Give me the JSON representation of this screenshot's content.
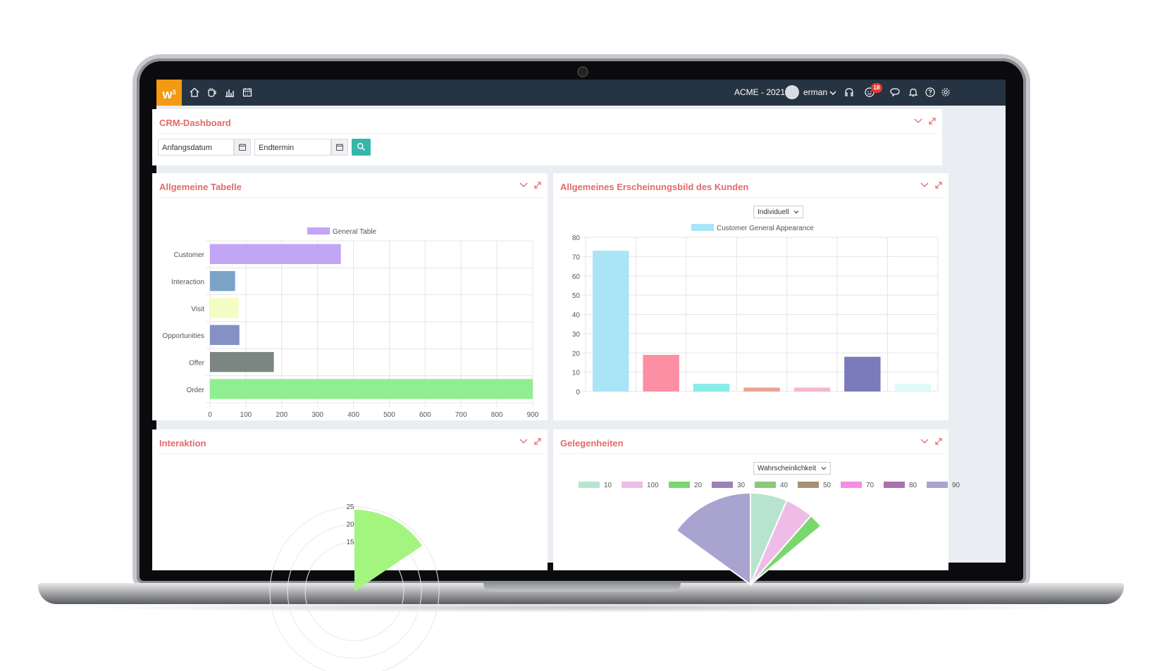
{
  "topbar": {
    "company": "ACME - 2021",
    "user": "erman",
    "notification_count": "18",
    "icons": [
      "home-icon",
      "coffee-icon",
      "bar-chart-icon",
      "calendar-icon",
      "headset-icon",
      "smile-icon",
      "chat-icon",
      "bell-icon",
      "help-icon",
      "gear-icon"
    ]
  },
  "dashboard": {
    "title": "CRM-Dashboard",
    "start_date_placeholder": "Anfangsdatum",
    "end_date_placeholder": "Endtermin"
  },
  "panels": {
    "general_table": {
      "title": "Allgemeine Tabelle"
    },
    "customer_appearance": {
      "title": "Allgemeines Erscheinungsbild des Kunden",
      "select_value": "Individuell"
    },
    "interaction": {
      "title": "Interaktion"
    },
    "opportunities": {
      "title": "Gelegenheiten",
      "select_value": "Wahrscheinlichkeit"
    }
  },
  "chart_data": [
    {
      "type": "bar",
      "orientation": "horizontal",
      "categories": [
        "Customer",
        "Interaction",
        "Visit",
        "Opportunities",
        "Offer",
        "Order"
      ],
      "series": [
        {
          "name": "General Table",
          "values": [
            365,
            70,
            80,
            82,
            178,
            905
          ]
        }
      ],
      "colors": [
        "#c3a5f5",
        "#7ba3c8",
        "#f4fdc4",
        "#8590c4",
        "#7b8582",
        "#8fee92"
      ],
      "legend_color": "#c3a5f5",
      "xlim": [
        0,
        900
      ],
      "xticks": [
        0,
        100,
        200,
        300,
        400,
        500,
        600,
        700,
        800,
        900
      ],
      "grid": true,
      "legend": "top"
    },
    {
      "type": "bar",
      "categories": [
        "",
        "",
        "",
        "",
        "",
        "",
        ""
      ],
      "series": [
        {
          "name": "Customer General Appearance",
          "values": [
            73,
            19,
            4,
            2,
            2,
            18,
            4
          ]
        }
      ],
      "colors": [
        "#a9e4f7",
        "#fd8fa5",
        "#88ece9",
        "#e8a492",
        "#f2b8cd",
        "#7a7bb8",
        "#e0f9fa"
      ],
      "legend_color": "#a9e4f7",
      "ylim": [
        0,
        80
      ],
      "yticks": [
        0,
        10,
        20,
        30,
        40,
        50,
        60,
        70,
        80
      ],
      "grid": true,
      "legend": "top"
    },
    {
      "type": "polar",
      "ticks": [
        "25",
        "20",
        "15"
      ],
      "colors": [
        "#a3f57f"
      ],
      "legend": "none"
    },
    {
      "type": "pie",
      "categories": [
        "10",
        "100",
        "20",
        "30",
        "40",
        "50",
        "70",
        "80",
        "90"
      ],
      "colors": [
        "#b8e4cf",
        "#efbce8",
        "#79d86d",
        "#9b81b6",
        "#8cc87a",
        "#a89272",
        "#f58ce5",
        "#a773ad",
        "#a9a3cf"
      ],
      "legend": "top"
    }
  ]
}
